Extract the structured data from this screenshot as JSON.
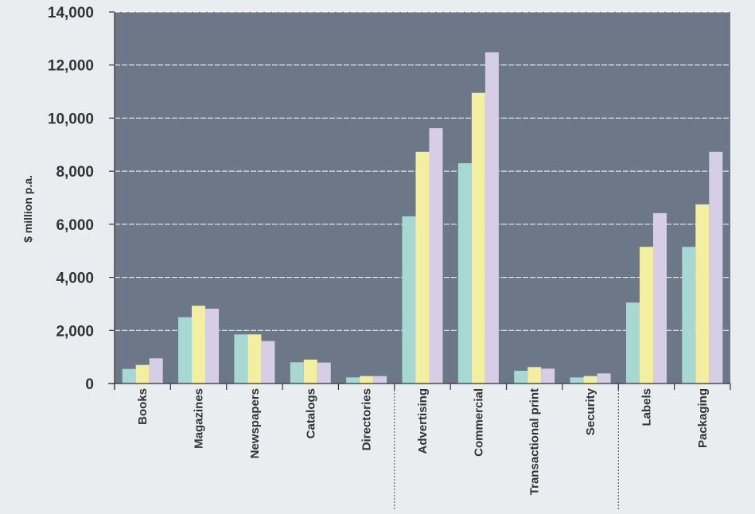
{
  "chart_data": {
    "type": "bar",
    "title": "",
    "xlabel": "",
    "ylabel": "$ million p.a.",
    "ylim": [
      0,
      14000
    ],
    "yticks": [
      0,
      2000,
      4000,
      6000,
      8000,
      10000,
      12000,
      14000
    ],
    "ytick_labels": [
      "0",
      "2,000",
      "4,000",
      "6,000",
      "8,000",
      "10,000",
      "12,000",
      "14,000"
    ],
    "grid": "horizontal",
    "legend": "none",
    "categories": [
      "Books",
      "Magazines",
      "Newspapers",
      "Catalogs",
      "Directories",
      "Advertising",
      "Commercial",
      "Transactional print",
      "Security",
      "Labels",
      "Packaging"
    ],
    "group_separators_after": [
      "Directories",
      "Security"
    ],
    "series": [
      {
        "color": "#a8d8d3",
        "values": [
          550,
          2500,
          1850,
          800,
          230,
          6300,
          8300,
          480,
          230,
          3050,
          5150
        ]
      },
      {
        "color": "#f4eea0",
        "values": [
          700,
          2930,
          1850,
          900,
          280,
          8730,
          10950,
          620,
          280,
          5150,
          6750
        ]
      },
      {
        "color": "#d6cee6",
        "values": [
          950,
          2820,
          1600,
          790,
          280,
          9620,
          12480,
          560,
          380,
          6420,
          8730
        ]
      }
    ],
    "plot_background": "#6c7788",
    "gridline_color": "#ffffff"
  }
}
